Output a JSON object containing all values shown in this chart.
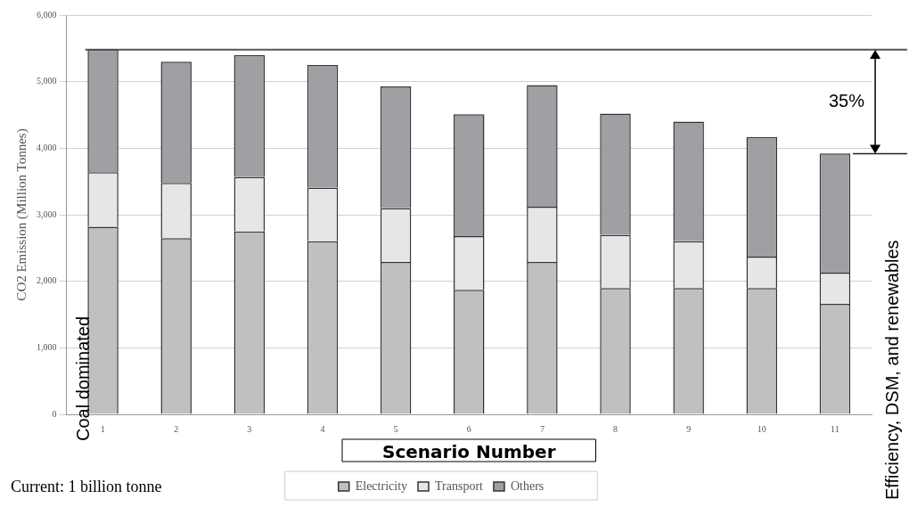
{
  "chart_data": {
    "type": "bar",
    "stacked": true,
    "xlabel": "Scenario Number",
    "ylabel": "CO2 Emission (Million Tonnes)",
    "categories": [
      "1",
      "2",
      "3",
      "4",
      "5",
      "6",
      "7",
      "8",
      "9",
      "10",
      "11"
    ],
    "series": [
      {
        "name": "Electricity",
        "color": "#c0c0c0",
        "values": [
          2820,
          2650,
          2750,
          2600,
          2290,
          1870,
          2290,
          1900,
          1900,
          1900,
          1660
        ]
      },
      {
        "name": "Transport",
        "color": "#e6e6e6",
        "values": [
          820,
          830,
          820,
          810,
          810,
          810,
          830,
          800,
          700,
          470,
          470
        ]
      },
      {
        "name": "Others",
        "color": "#a0a0a4",
        "values": [
          1840,
          1820,
          1830,
          1840,
          1830,
          1830,
          1830,
          1820,
          1800,
          1800,
          1790
        ]
      }
    ],
    "ylim": [
      0,
      6000
    ],
    "yticks": [
      {
        "value": 0,
        "label": "0"
      },
      {
        "value": 1000,
        "label": "1,000"
      },
      {
        "value": 2000,
        "label": "2,000"
      },
      {
        "value": 3000,
        "label": "3,000"
      },
      {
        "value": 4000,
        "label": "4,000"
      },
      {
        "value": 5000,
        "label": "5,000"
      },
      {
        "value": 6000,
        "label": "6,000"
      }
    ],
    "grid": "y",
    "legend": "bottom",
    "ref_lines": [
      {
        "axis": "y",
        "value": 5480,
        "color": "#555555"
      }
    ],
    "annotations": [
      "Coal dominated",
      "Efficiency, DSM, and renewables",
      "Current: 1 billion tonne",
      "35%"
    ]
  }
}
